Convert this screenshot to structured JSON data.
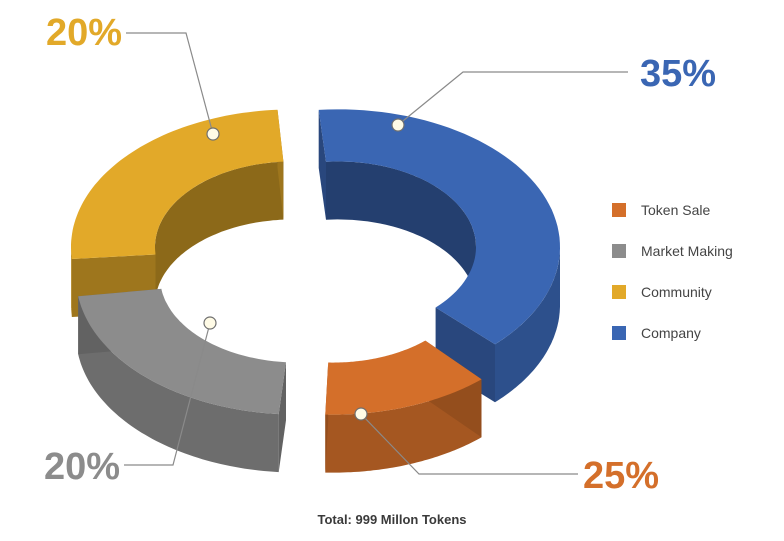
{
  "chart_data": {
    "type": "pie",
    "variant": "3d-exploded-donut",
    "categories": [
      "Token Sale",
      "Market Making",
      "Community",
      "Company"
    ],
    "values": [
      25,
      20,
      20,
      35
    ],
    "value_labels": [
      "25%",
      "20%",
      "20%",
      "35%"
    ],
    "colors": [
      "#D46F2A",
      "#8C8C8C",
      "#E2A929",
      "#3A66B3"
    ],
    "legend": {
      "placement": "right",
      "entries": [
        "Token Sale",
        "Market Making",
        "Community",
        "Company"
      ]
    },
    "caption": "Total: 999 Millon Tokens"
  }
}
